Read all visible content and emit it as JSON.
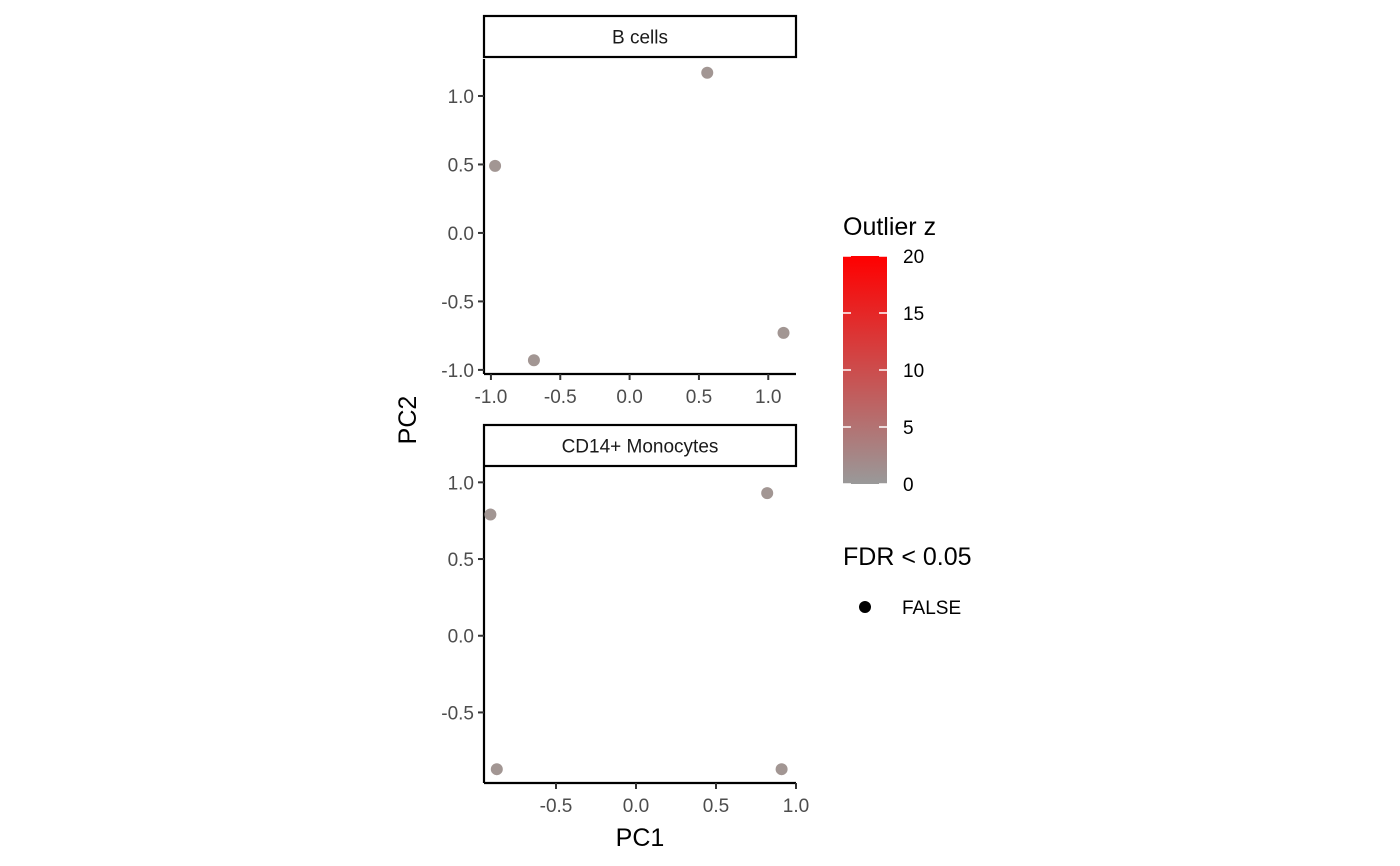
{
  "chart_data": {
    "type": "scatter",
    "xlabel": "PC1",
    "ylabel": "PC2",
    "point_color": "#a29693",
    "panels": [
      {
        "label": "B cells",
        "xlim": [
          -1.05,
          1.2
        ],
        "ylim": [
          -1.03,
          1.27
        ],
        "xticks": [
          -1.0,
          -0.5,
          0.0,
          0.5,
          1.0
        ],
        "xtick_labels": [
          "-1.0",
          "-0.5",
          "0.0",
          "0.5",
          "1.0"
        ],
        "yticks": [
          -1.0,
          -0.5,
          0.0,
          0.5,
          1.0
        ],
        "ytick_labels": [
          "-1.0",
          "-0.5",
          "0.0",
          "0.5",
          "1.0"
        ],
        "points": [
          {
            "x": -0.97,
            "y": 0.49
          },
          {
            "x": 0.56,
            "y": 1.17
          },
          {
            "x": -0.69,
            "y": -0.93
          },
          {
            "x": 1.11,
            "y": -0.73
          }
        ]
      },
      {
        "label": "CD14+ Monocytes",
        "xlim": [
          -0.95,
          1.0
        ],
        "ylim": [
          -0.96,
          1.1
        ],
        "xticks": [
          -0.5,
          0.0,
          0.5,
          1.0
        ],
        "xtick_labels": [
          "-0.5",
          "0.0",
          "0.5",
          "1.0"
        ],
        "yticks": [
          -0.5,
          0.0,
          0.5,
          1.0
        ],
        "ytick_labels": [
          "-0.5",
          "0.0",
          "0.5",
          "1.0"
        ],
        "points": [
          {
            "x": -0.91,
            "y": 0.79
          },
          {
            "x": 0.82,
            "y": 0.93
          },
          {
            "x": -0.87,
            "y": -0.87
          },
          {
            "x": 0.91,
            "y": -0.87
          }
        ]
      }
    ],
    "legend": {
      "placement": "right",
      "colorbar": {
        "title": "Outlier z",
        "min": 0,
        "max": 20,
        "ticks": [
          0,
          5,
          10,
          15,
          20
        ],
        "tick_labels": [
          "0",
          "5",
          "10",
          "15",
          "20"
        ],
        "low_color": "#999999",
        "high_color": "#ff0000"
      },
      "shape": {
        "title": "FDR < 0.05",
        "entries": [
          "FALSE"
        ],
        "marker_color": "#000000"
      }
    },
    "grid": false
  }
}
